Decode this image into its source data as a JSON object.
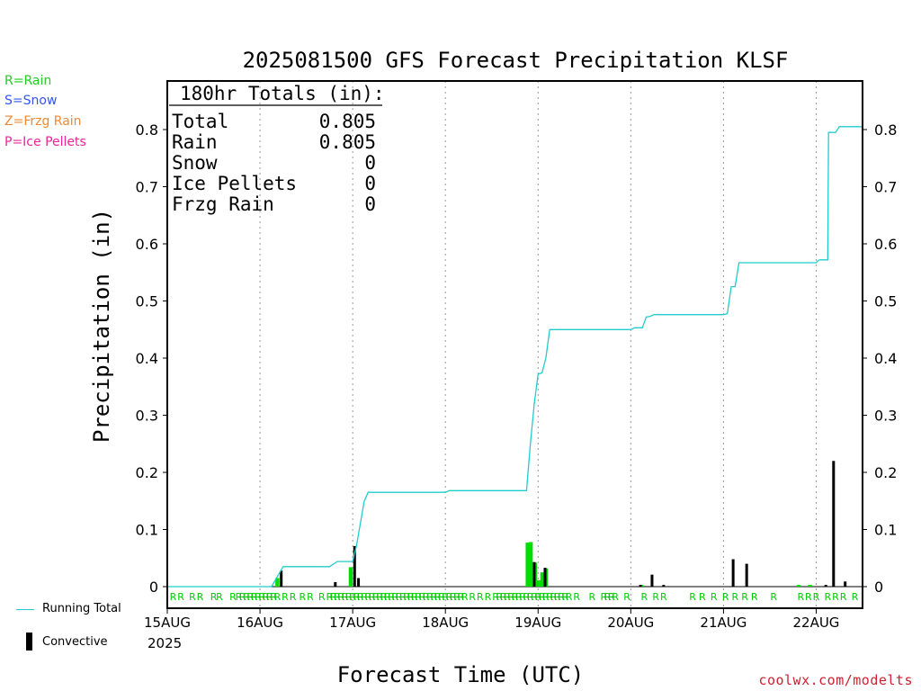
{
  "chart_data": {
    "type": "bar",
    "title": "2025081500 GFS Forecast Precipitation KLSF",
    "xlabel": "Forecast Time (UTC)",
    "ylabel": "Precipitation (in)",
    "ylim": [
      0,
      0.88
    ],
    "yticks": [
      "0",
      "0.1",
      "0.2",
      "0.3",
      "0.4",
      "0.5",
      "0.6",
      "0.7",
      "0.8"
    ],
    "x_range_hours": [
      0,
      180
    ],
    "x_ticks": [
      {
        "label": "15AUG",
        "hour": 0
      },
      {
        "label": "16AUG",
        "hour": 24
      },
      {
        "label": "17AUG",
        "hour": 48
      },
      {
        "label": "18AUG",
        "hour": 72
      },
      {
        "label": "19AUG",
        "hour": 96
      },
      {
        "label": "20AUG",
        "hour": 120
      },
      {
        "label": "21AUG",
        "hour": 144
      },
      {
        "label": "22AUG",
        "hour": 168
      }
    ],
    "year_label": "2025",
    "grid": "vertical dotted at day boundaries",
    "series": [
      {
        "name": "Running Total",
        "kind": "line",
        "color": "#22cccc",
        "points": [
          [
            0,
            0
          ],
          [
            27,
            0
          ],
          [
            30,
            0.035
          ],
          [
            42,
            0.035
          ],
          [
            44,
            0.044
          ],
          [
            48,
            0.044
          ],
          [
            49,
            0.072
          ],
          [
            51,
            0.15
          ],
          [
            52,
            0.165
          ],
          [
            72,
            0.165
          ],
          [
            73,
            0.168
          ],
          [
            93,
            0.168
          ],
          [
            94,
            0.25
          ],
          [
            95,
            0.32
          ],
          [
            96,
            0.372
          ],
          [
            97,
            0.374
          ],
          [
            98,
            0.4
          ],
          [
            99,
            0.45
          ],
          [
            120,
            0.45
          ],
          [
            121,
            0.453
          ],
          [
            123,
            0.453
          ],
          [
            124,
            0.472
          ],
          [
            125,
            0.473
          ],
          [
            126,
            0.476
          ],
          [
            144,
            0.476
          ],
          [
            145,
            0.478
          ],
          [
            146,
            0.525
          ],
          [
            147,
            0.525
          ],
          [
            148,
            0.567
          ],
          [
            168,
            0.567
          ],
          [
            168.5,
            0.571
          ],
          [
            169,
            0.572
          ],
          [
            171,
            0.572
          ],
          [
            171.2,
            0.795
          ],
          [
            173,
            0.795
          ],
          [
            174,
            0.805
          ],
          [
            180,
            0.805
          ]
        ]
      },
      {
        "name": "Rain",
        "kind": "bar",
        "color": "#00dd00",
        "bars": [
          [
            28.5,
            0.015
          ],
          [
            47.5,
            0.034
          ],
          [
            93.3,
            0.077
          ],
          [
            94.1,
            0.078
          ],
          [
            95.2,
            0.042
          ],
          [
            96.2,
            0.011
          ],
          [
            97.1,
            0.025
          ],
          [
            98,
            0.032
          ],
          [
            122.8,
            0.003
          ],
          [
            163.5,
            0.003
          ],
          [
            166.4,
            0.003
          ]
        ]
      },
      {
        "name": "Convective",
        "kind": "bar",
        "color": "#000000",
        "bars": [
          [
            29.5,
            0.028
          ],
          [
            43.5,
            0.008
          ],
          [
            48.5,
            0.071
          ],
          [
            49.5,
            0.015
          ],
          [
            95,
            0.043
          ],
          [
            97.8,
            0.033
          ],
          [
            122.5,
            0.003
          ],
          [
            125.5,
            0.021
          ],
          [
            128.5,
            0.003
          ],
          [
            146.5,
            0.048
          ],
          [
            150,
            0.04
          ],
          [
            170.5,
            0.003
          ],
          [
            172.5,
            0.22
          ],
          [
            175.5,
            0.009
          ]
        ]
      }
    ],
    "totals_box": {
      "title": "180hr Totals (in):",
      "rows": [
        {
          "label": "Total",
          "value": "0.805"
        },
        {
          "label": "Rain",
          "value": "0.805"
        },
        {
          "label": "Snow",
          "value": "0"
        },
        {
          "label": "Ice Pellets",
          "value": "0"
        },
        {
          "label": "Frzg Rain",
          "value": "0"
        }
      ]
    },
    "type_markers": {
      "letter": "R",
      "color": "#00cc00",
      "hours": [
        1.5,
        3.5,
        6.5,
        8.5,
        12,
        13.5,
        17,
        18.5,
        19.5,
        20.5,
        21.5,
        22.5,
        23.5,
        24.5,
        25.5,
        26.5,
        27.5,
        28.5,
        30.5,
        32.5,
        35,
        37,
        40,
        42,
        43,
        44,
        45,
        46,
        47,
        48,
        49,
        50,
        51,
        52,
        53,
        54,
        55,
        56,
        57,
        58,
        59,
        60,
        61,
        62,
        63,
        64,
        65,
        66,
        67,
        68,
        69,
        70,
        71,
        72,
        73,
        74,
        75,
        76,
        77,
        79,
        81,
        83,
        85,
        86,
        87,
        88,
        89,
        90,
        91,
        92,
        93,
        94,
        95,
        96,
        97,
        98,
        99,
        100,
        101,
        102,
        103,
        104,
        106,
        110,
        113,
        114,
        115,
        116,
        119,
        123.5,
        126.5,
        128.5,
        136,
        138.5,
        141.5,
        144.5,
        147,
        149.5,
        152,
        157,
        164,
        166,
        168,
        171,
        173,
        175,
        178
      ]
    }
  },
  "type_legend": [
    {
      "label": "R=Rain",
      "color": "#22cc22"
    },
    {
      "label": "S=Snow",
      "color": "#3355ee"
    },
    {
      "label": "Z=Frzg Rain",
      "color": "#ee8833"
    },
    {
      "label": "P=Ice Pellets",
      "color": "#ee2299"
    }
  ],
  "bottom_legend": {
    "running_total": "Running Total",
    "convective": "Convective"
  },
  "credit": "coolwx.com/modelts"
}
